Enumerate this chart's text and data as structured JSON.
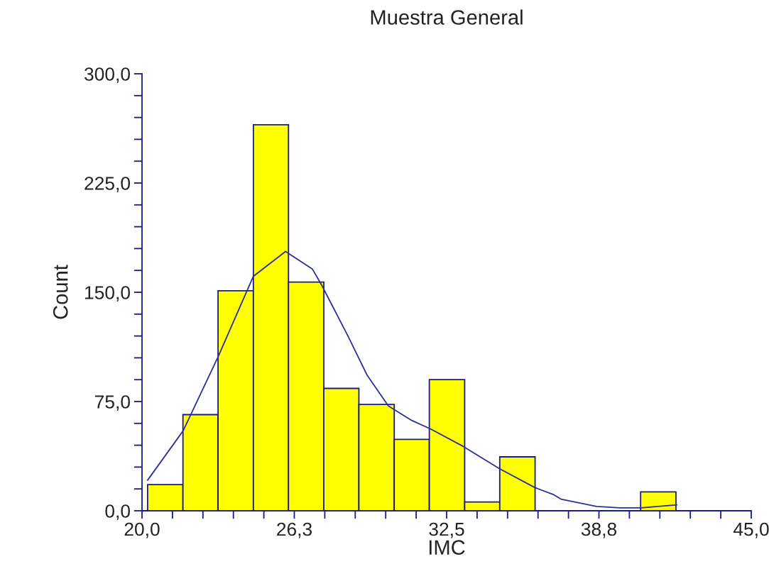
{
  "chart_data": {
    "type": "histogram",
    "title": "Muestra General",
    "xlabel": "IMC",
    "ylabel": "Count",
    "bins": [
      20.23,
      21.68,
      23.12,
      24.57,
      26.01,
      27.46,
      28.9,
      30.35,
      31.79,
      33.24,
      34.68,
      36.13,
      37.57,
      39.02,
      40.46,
      41.91
    ],
    "values": [
      18,
      66,
      151,
      265,
      157,
      84,
      73,
      49,
      90,
      6,
      37,
      0,
      0,
      0,
      13
    ],
    "color": "#ffff00",
    "series": [
      {
        "type": "line",
        "color": "#2e2e9a",
        "x": [
          20.23,
          21.69,
          23.13,
          24.57,
          25.89,
          26.99,
          27.37,
          28.45,
          29.24,
          30.11,
          31.07,
          31.86,
          33.2,
          34.66,
          36.11,
          36.9,
          37.19,
          38.65,
          39.61,
          40.48,
          41.94
        ],
        "values": [
          21,
          55,
          106,
          161,
          178,
          166,
          155,
          120,
          93,
          72,
          62,
          56,
          44,
          29,
          16,
          11,
          8,
          3,
          2,
          2,
          4
        ]
      }
    ],
    "xlim": [
      20,
      45
    ],
    "xticks": [
      {
        "value": 20,
        "label": "20,0"
      },
      {
        "value": 21.25,
        "label": null
      },
      {
        "value": 22.5,
        "label": null
      },
      {
        "value": 23.75,
        "label": null
      },
      {
        "value": 25,
        "label": null
      },
      {
        "value": 26.25,
        "label": "26,3"
      },
      {
        "value": 27.5,
        "label": null
      },
      {
        "value": 28.75,
        "label": null
      },
      {
        "value": 30,
        "label": null
      },
      {
        "value": 31.25,
        "label": null
      },
      {
        "value": 32.5,
        "label": "32,5"
      },
      {
        "value": 33.75,
        "label": null
      },
      {
        "value": 35,
        "label": null
      },
      {
        "value": 36.25,
        "label": null
      },
      {
        "value": 37.5,
        "label": null
      },
      {
        "value": 38.75,
        "label": "38,8"
      },
      {
        "value": 40,
        "label": null
      },
      {
        "value": 41.25,
        "label": null
      },
      {
        "value": 42.5,
        "label": null
      },
      {
        "value": 43.75,
        "label": null
      },
      {
        "value": 45,
        "label": "45,0"
      }
    ],
    "ylim": [
      0,
      300
    ],
    "yticks": [
      {
        "value": 0,
        "label": "0,0"
      },
      {
        "value": 15,
        "label": null
      },
      {
        "value": 30,
        "label": null
      },
      {
        "value": 45,
        "label": null
      },
      {
        "value": 60,
        "label": null
      },
      {
        "value": 75,
        "label": "75,0"
      },
      {
        "value": 90,
        "label": null
      },
      {
        "value": 105,
        "label": null
      },
      {
        "value": 120,
        "label": null
      },
      {
        "value": 135,
        "label": null
      },
      {
        "value": 150,
        "label": "150,0"
      },
      {
        "value": 165,
        "label": null
      },
      {
        "value": 180,
        "label": null
      },
      {
        "value": 195,
        "label": null
      },
      {
        "value": 210,
        "label": null
      },
      {
        "value": 225,
        "label": "225,0"
      },
      {
        "value": 240,
        "label": null
      },
      {
        "value": 255,
        "label": null
      },
      {
        "value": 270,
        "label": null
      },
      {
        "value": 285,
        "label": null
      },
      {
        "value": 300,
        "label": "300,0"
      }
    ],
    "grid": false,
    "legend": false
  }
}
